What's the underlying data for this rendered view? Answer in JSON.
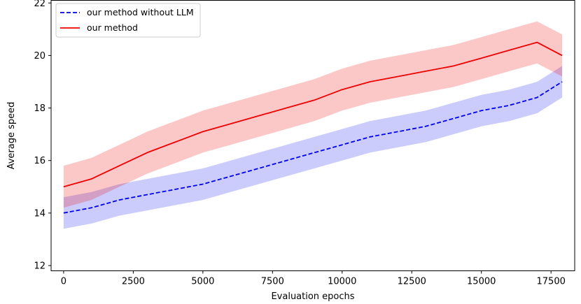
{
  "chart_data": {
    "type": "line",
    "title": "",
    "xlabel": "Evaluation epochs",
    "ylabel": "Average speed",
    "xlim": [
      -450,
      18350
    ],
    "ylim": [
      11.8,
      22.1
    ],
    "x_ticks": [
      0,
      2500,
      5000,
      7500,
      10000,
      12500,
      15000,
      17500
    ],
    "x_tick_labels": [
      "0",
      "2500",
      "5000",
      "7500",
      "10000",
      "12500",
      "15000",
      "17500"
    ],
    "y_ticks": [
      12,
      14,
      16,
      18,
      20,
      22
    ],
    "y_tick_labels": [
      "12",
      "14",
      "16",
      "18",
      "20",
      "22"
    ],
    "grid": false,
    "legend_position": "top-left",
    "colors": {
      "series_0": "#0000ee",
      "series_1": "#ee0000"
    },
    "series": [
      {
        "name": "our method without LLM",
        "style": "dashed",
        "x": [
          0,
          1000,
          2000,
          3000,
          4000,
          5000,
          6000,
          7000,
          8000,
          9000,
          10000,
          11000,
          12000,
          13000,
          14000,
          15000,
          16000,
          17000,
          17900
        ],
        "y": [
          14.0,
          14.2,
          14.5,
          14.7,
          14.9,
          15.1,
          15.4,
          15.7,
          16.0,
          16.3,
          16.6,
          16.9,
          17.1,
          17.3,
          17.6,
          17.9,
          18.1,
          18.4,
          19.0
        ],
        "band": 0.6
      },
      {
        "name": "our method",
        "style": "solid",
        "x": [
          0,
          1000,
          2000,
          3000,
          4000,
          5000,
          6000,
          7000,
          8000,
          9000,
          10000,
          11000,
          12000,
          13000,
          14000,
          15000,
          16000,
          17000,
          17900
        ],
        "y": [
          15.0,
          15.3,
          15.8,
          16.3,
          16.7,
          17.1,
          17.4,
          17.7,
          18.0,
          18.3,
          18.7,
          19.0,
          19.2,
          19.4,
          19.6,
          19.9,
          20.2,
          20.5,
          20.0
        ],
        "band": 0.8
      }
    ]
  }
}
